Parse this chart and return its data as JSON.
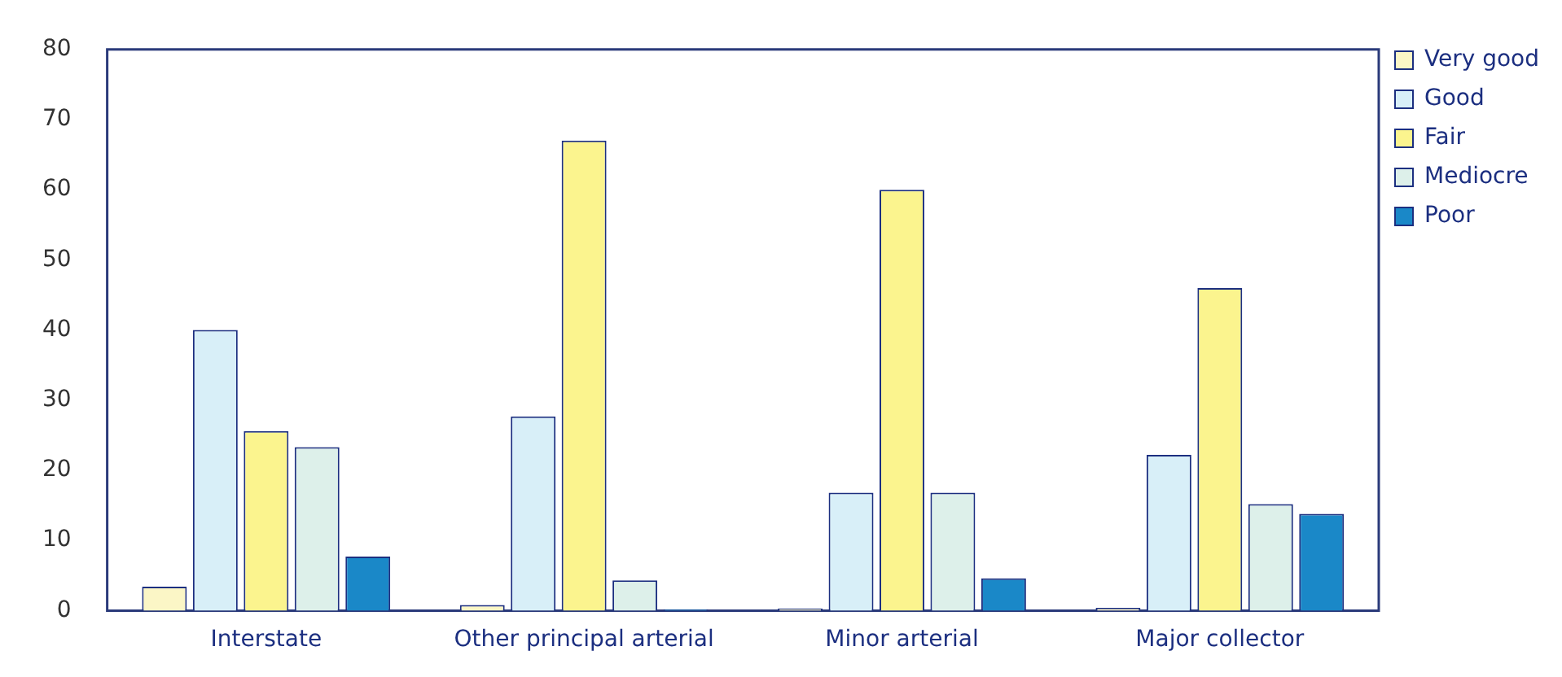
{
  "chart_data": {
    "type": "bar",
    "categories": [
      "Interstate",
      "Other principal arterial",
      "Minor arterial",
      "Major collector"
    ],
    "series": [
      {
        "name": "Very good",
        "color": "#fbf6c6",
        "values": [
          3.4,
          0.8,
          0.3,
          0.4
        ]
      },
      {
        "name": "Good",
        "color": "#d8eff8",
        "values": [
          40,
          27.7,
          16.8,
          22.2
        ]
      },
      {
        "name": "Fair",
        "color": "#fbf48e",
        "values": [
          25.6,
          67,
          60,
          46
        ]
      },
      {
        "name": "Mediocre",
        "color": "#ddf0ea",
        "values": [
          23.3,
          4.3,
          16.8,
          15.2
        ]
      },
      {
        "name": "Poor",
        "color": "#1a88c8",
        "values": [
          7.7,
          0.2,
          4.6,
          13.8
        ]
      }
    ],
    "ylim": [
      0,
      80
    ],
    "yticks": [
      0,
      10,
      20,
      30,
      40,
      50,
      60,
      70,
      80
    ],
    "grid": false,
    "legend": "top right"
  }
}
